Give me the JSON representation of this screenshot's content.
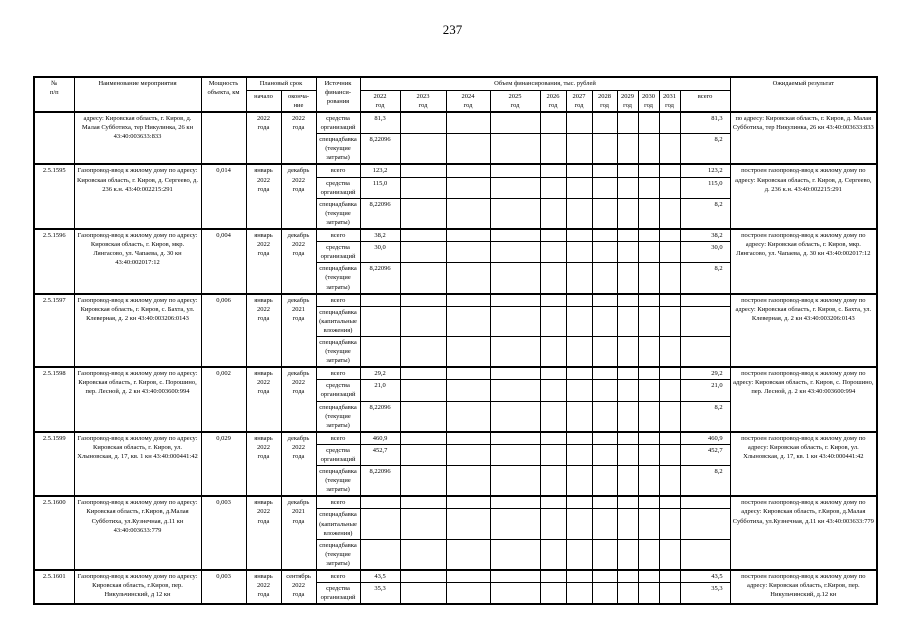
{
  "page_number": "237",
  "table": {
    "headers": {
      "num": "№\nп/п",
      "name": "Наименование мероприятия",
      "power": "Мощность\nобъекта, км",
      "period": "Плановый срок",
      "period_start": "начало",
      "period_end": "оконча-\nние",
      "source": "Источник\nфинанси-\nрования",
      "volume": "Объем финансирования, тыс. рублей",
      "years": [
        "2022\nгод",
        "2023\nгод",
        "2024\nгод",
        "2025\nгод",
        "2026\nгод",
        "2027\nгод",
        "2028\nгод",
        "2029\nгод",
        "2030\nгод",
        "2031\nгод"
      ],
      "total": "всего",
      "result": "Ожидаемый результат"
    },
    "rows": [
      {
        "num": "",
        "name": "адресу: Кировская область, г. Киров, д. Малая Субботиха, тер Никулинка, 26 кн 43:40:003633:833",
        "power": "",
        "start": "2022\nгода",
        "end": "2022\nгода",
        "fin": [
          {
            "source": "средства организаций",
            "y2022": "81,3",
            "total": "81,3"
          },
          {
            "source": "спецнадбавка (текущие затраты)",
            "y2022": "8,22096",
            "total": "8,2"
          }
        ],
        "result": "по адресу: Кировская область, г. Киров, д. Малая Субботиха, тер Никулинка, 26 кн 43:40:003633:833"
      },
      {
        "num": "2.5.1595",
        "name": "Газопровод-ввод к жилому дому по адресу: Кировская область, г. Киров, д. Сергеево, д. 236 к.н. 43:40:002215:291",
        "power": "0,014",
        "start": "январь\n2022\nгода",
        "end": "декабрь\n2022\nгода",
        "fin": [
          {
            "source": "всего",
            "y2022": "123,2",
            "total": "123,2"
          },
          {
            "source": "средства организаций",
            "y2022": "115,0",
            "total": "115,0"
          },
          {
            "source": "спецнадбавка (текущие затраты)",
            "y2022": "8,22096",
            "total": "8,2"
          }
        ],
        "result": "построен газопровод-ввод к жилому дому по адресу: Кировская область, г. Киров, д. Сергеево, д. 236 к.н. 43:40:002215:291"
      },
      {
        "num": "2.5.1596",
        "name": "Газопровод-ввод к жилому дому по адресу: Кировская область, г. Киров, мкр. Лянгасово, ул. Чапаева, д. 30 кн 43:40:002017:12",
        "power": "0,004",
        "start": "январь\n2022\nгода",
        "end": "декабрь\n2022\nгода",
        "fin": [
          {
            "source": "всего",
            "y2022": "38,2",
            "total": "38,2"
          },
          {
            "source": "средства организаций",
            "y2022": "30,0",
            "total": "30,0"
          },
          {
            "source": "спецнадбавка (текущие затраты)",
            "y2022": "8,22096",
            "total": "8,2"
          }
        ],
        "result": "построен газопровод-ввод к жилому дому по адресу: Кировская область, г. Киров, мкр. Лянгасово, ул. Чапаева, д. 30 кн 43:40:002017:12"
      },
      {
        "num": "2.5.1597",
        "name": "Газопровод-ввод к жилому дому по адресу: Кировская область, г. Киров, с. Бахта, ул. Клеверная, д. 2 кн 43:40:003206:0143",
        "power": "0,006",
        "start": "январь\n2022\nгода",
        "end": "декабрь\n2021\nгода",
        "fin": [
          {
            "source": "всего",
            "y2022": "",
            "total": ""
          },
          {
            "source": "спецнадбавка (капитальные вложения)",
            "y2022": "",
            "total": ""
          },
          {
            "source": "спецнадбавка (текущие затраты)",
            "y2022": "",
            "total": ""
          }
        ],
        "result": "построен газопровод-ввод к жилому дому по адресу: Кировская область, г. Киров, с. Бахта, ул. Клеверная, д. 2 кн 43:40:003206:0143"
      },
      {
        "num": "2.5.1598",
        "name": "Газопровод-ввод к жилому дому по адресу: Кировская область, г. Киров, с. Порошино, пер. Лесной, д. 2 кн 43:40:003600:994",
        "power": "0,002",
        "start": "январь\n2022\nгода",
        "end": "декабрь\n2022\nгода",
        "fin": [
          {
            "source": "всего",
            "y2022": "29,2",
            "total": "29,2"
          },
          {
            "source": "средства организаций",
            "y2022": "21,0",
            "total": "21,0"
          },
          {
            "source": "спецнадбавка (текущие затраты)",
            "y2022": "8,22096",
            "total": "8,2"
          }
        ],
        "result": "построен газопровод-ввод к жилому дому по адресу: Кировская область, г. Киров, с. Порошино, пер. Лесной, д. 2 кн 43:40:003600:994"
      },
      {
        "num": "2.5.1599",
        "name": "Газопровод-ввод к жилому дому по адресу: Кировская область, г. Киров, ул. Хлыновская, д. 17, кв. 1 кн 43:40:000441:42",
        "power": "0,029",
        "start": "январь\n2022\nгода",
        "end": "декабрь\n2022\nгода",
        "fin": [
          {
            "source": "всего",
            "y2022": "460,9",
            "total": "460,9"
          },
          {
            "source": "средства организаций",
            "y2022": "452,7",
            "total": "452,7"
          },
          {
            "source": "спецнадбавка (текущие затраты)",
            "y2022": "8,22096",
            "total": "8,2"
          }
        ],
        "result": "построен газопровод-ввод к жилому дому по адресу: Кировская область, г. Киров, ул. Хлыновская, д. 17, кв. 1 кн 43:40:000441:42"
      },
      {
        "num": "2.5.1600",
        "name": "Газопровод-ввод к жилому дому по адресу: Кировская область, г.Киров, д.Малая Субботиха, ул.Кузнечная, д.11 кн 43:40:003633:779",
        "power": "0,003",
        "start": "январь\n2022\nгода",
        "end": "декабрь\n2021\nгода",
        "fin": [
          {
            "source": "всего",
            "y2022": "",
            "total": ""
          },
          {
            "source": "спецнадбавка (капитальные вложения)",
            "y2022": "",
            "total": ""
          },
          {
            "source": "спецнадбавка (текущие затраты)",
            "y2022": "",
            "total": ""
          }
        ],
        "result": "построен газопровод-ввод к жилому дому по адресу: Кировская область, г.Киров, д.Малая Субботиха, ул.Кузнечная, д.11 кн 43:40:003633:779"
      },
      {
        "num": "2.5.1601",
        "name": "Газопровод-ввод к жилому дому по адресу: Кировская область, г.Киров, пер. Никульчинский, д 12 кн",
        "power": "0,003",
        "start": "январь\n2022\nгода",
        "end": "сентябрь\n2022\nгода",
        "fin": [
          {
            "source": "всего",
            "y2022": "43,5",
            "total": "43,5"
          },
          {
            "source": "средства организаций",
            "y2022": "35,3",
            "total": "35,3"
          }
        ],
        "result": "построен газопровод-ввод к жилому дому по адресу: Кировская область, г.Киров, пер. Никульчинский, д.12 кн"
      }
    ]
  }
}
